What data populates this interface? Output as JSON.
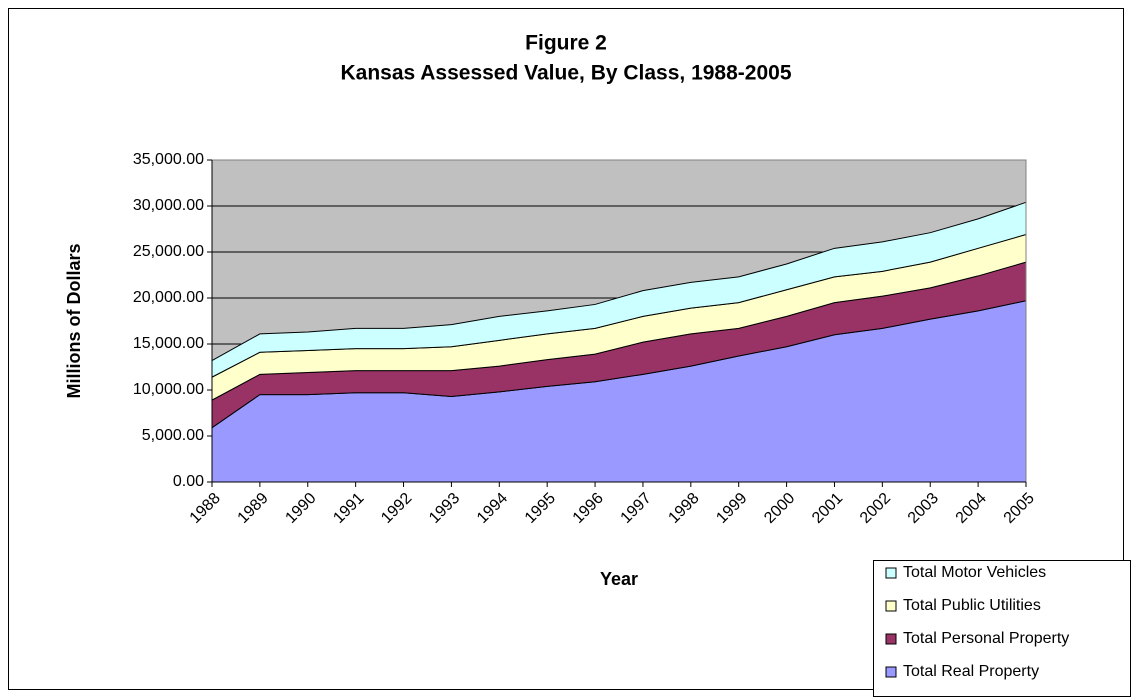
{
  "chart_data": {
    "type": "stacked-area",
    "title": "Figure 2",
    "subtitle": "Kansas Assessed Value, By Class, 1988-2005",
    "xlabel": "Year",
    "ylabel": "Millions of Dollars",
    "categories": [
      "1988",
      "1989",
      "1990",
      "1991",
      "1992",
      "1993",
      "1994",
      "1995",
      "1996",
      "1997",
      "1998",
      "1999",
      "2000",
      "2001",
      "2002",
      "2003",
      "2004",
      "2005"
    ],
    "series": [
      {
        "name": "Total Real Property",
        "color": "#9999ff",
        "values": [
          5900,
          9500,
          9500,
          9700,
          9700,
          9300,
          9800,
          10400,
          10900,
          11700,
          12600,
          13700,
          14700,
          16000,
          16700,
          17700,
          18600,
          19700
        ]
      },
      {
        "name": "Total Personal Property",
        "color": "#993366",
        "values": [
          3000,
          2200,
          2400,
          2400,
          2400,
          2800,
          2800,
          2900,
          3000,
          3500,
          3500,
          3000,
          3300,
          3500,
          3500,
          3400,
          3800,
          4200
        ]
      },
      {
        "name": "Total Public Utilities",
        "color": "#ffffcc",
        "values": [
          2500,
          2400,
          2400,
          2400,
          2400,
          2600,
          2800,
          2800,
          2800,
          2800,
          2800,
          2800,
          2900,
          2800,
          2700,
          2800,
          3000,
          3000
        ]
      },
      {
        "name": "Total Motor Vehicles",
        "color": "#ccffff",
        "values": [
          1800,
          2000,
          2000,
          2200,
          2200,
          2400,
          2600,
          2500,
          2600,
          2800,
          2800,
          2800,
          2800,
          3100,
          3200,
          3200,
          3200,
          3500
        ]
      }
    ],
    "ylim": [
      0,
      35000
    ],
    "yticks": [
      {
        "value": 0,
        "label": "0.00"
      },
      {
        "value": 5000,
        "label": "5,000.00"
      },
      {
        "value": 10000,
        "label": "10,000.00"
      },
      {
        "value": 15000,
        "label": "15,000.00"
      },
      {
        "value": 20000,
        "label": "20,000.00"
      },
      {
        "value": 25000,
        "label": "25,000.00"
      },
      {
        "value": 30000,
        "label": "30,000.00"
      },
      {
        "value": 35000,
        "label": "35,000.00"
      }
    ],
    "grid": true,
    "plot_background": "#c0c0c0",
    "legend": "bottom-right"
  }
}
